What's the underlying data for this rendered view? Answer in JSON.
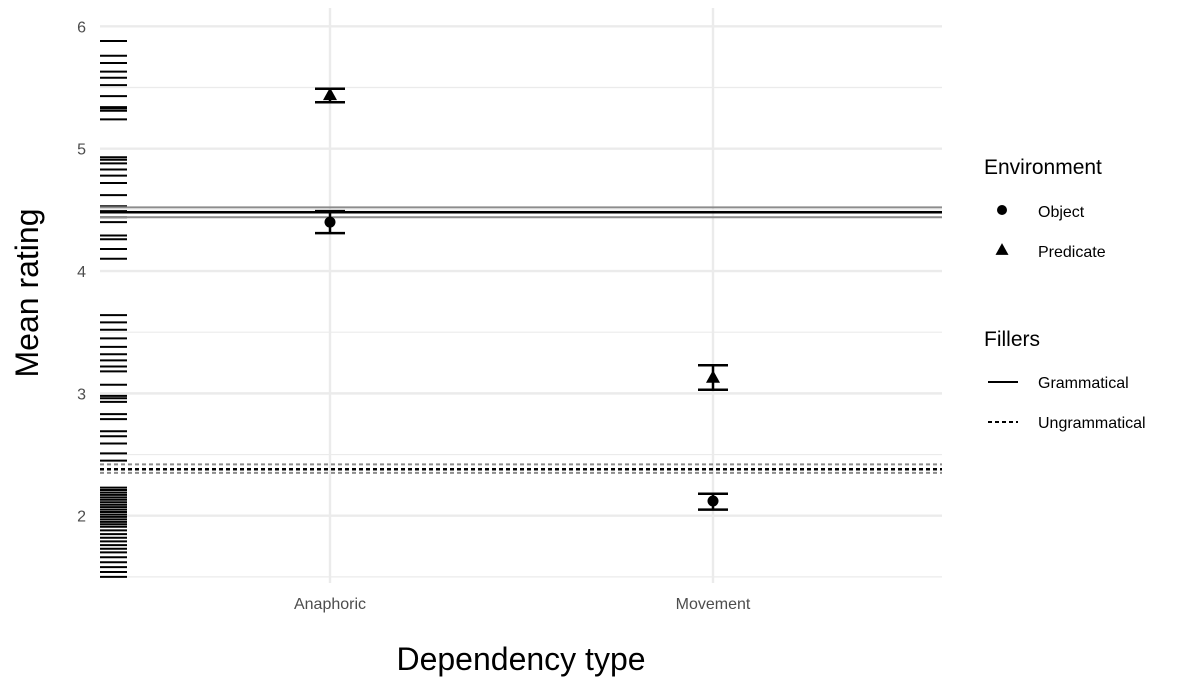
{
  "chart_data": {
    "type": "scatter",
    "xlabel": "Dependency type",
    "ylabel": "Mean rating",
    "categories": [
      "Anaphoric",
      "Movement"
    ],
    "ylim": [
      1.45,
      6.15
    ],
    "yticks": [
      "2",
      "3",
      "4",
      "5",
      "6"
    ],
    "grid": true,
    "legend_placement": "right",
    "series": [
      {
        "name": "Object",
        "shape": "circle",
        "points": [
          {
            "x": "Anaphoric",
            "y": 4.4,
            "ymin": 4.31,
            "ymax": 4.49
          },
          {
            "x": "Movement",
            "y": 2.12,
            "ymin": 2.05,
            "ymax": 2.18
          }
        ]
      },
      {
        "name": "Predicate",
        "shape": "triangle",
        "points": [
          {
            "x": "Anaphoric",
            "y": 5.44,
            "ymin": 5.38,
            "ymax": 5.49
          },
          {
            "x": "Movement",
            "y": 3.13,
            "ymin": 3.03,
            "ymax": 3.23
          }
        ]
      }
    ],
    "reference_lines": [
      {
        "name": "Grammatical",
        "linetype": "solid",
        "y": 4.48,
        "ymin": 4.44,
        "ymax": 4.52
      },
      {
        "name": "Ungrammatical",
        "linetype": "dashed",
        "y": 2.38,
        "ymin": 2.35,
        "ymax": 2.42
      }
    ],
    "rug_values": [
      1.5,
      1.54,
      1.58,
      1.62,
      1.66,
      1.7,
      1.73,
      1.76,
      1.79,
      1.82,
      1.85,
      1.88,
      1.91,
      1.93,
      1.95,
      1.97,
      1.99,
      2.01,
      2.03,
      2.05,
      2.07,
      2.09,
      2.11,
      2.13,
      2.15,
      2.17,
      2.19,
      2.21,
      2.23,
      2.45,
      2.51,
      2.59,
      2.65,
      2.69,
      2.79,
      2.83,
      2.93,
      2.96,
      2.98,
      3.07,
      3.18,
      3.22,
      3.27,
      3.32,
      3.38,
      3.45,
      3.52,
      3.58,
      3.64,
      4.1,
      4.18,
      4.26,
      4.29,
      4.4,
      4.44,
      4.49,
      4.53,
      4.62,
      4.72,
      4.78,
      4.83,
      4.88,
      4.91,
      4.93,
      5.24,
      5.31,
      5.33,
      5.34,
      5.43,
      5.52,
      5.58,
      5.63,
      5.7,
      5.76,
      5.88
    ],
    "legend": {
      "environment_title": "Environment",
      "environment_items": [
        {
          "label": "Object",
          "shape": "circle"
        },
        {
          "label": "Predicate",
          "shape": "triangle"
        }
      ],
      "fillers_title": "Fillers",
      "fillers_items": [
        {
          "label": "Grammatical",
          "linetype": "solid"
        },
        {
          "label": "Ungrammatical",
          "linetype": "dashed"
        }
      ]
    },
    "colors": {
      "mark": "#000000",
      "grid": "#ebebeb",
      "band": "#8c8c8c",
      "axis_text": "#4d4d4d"
    }
  }
}
